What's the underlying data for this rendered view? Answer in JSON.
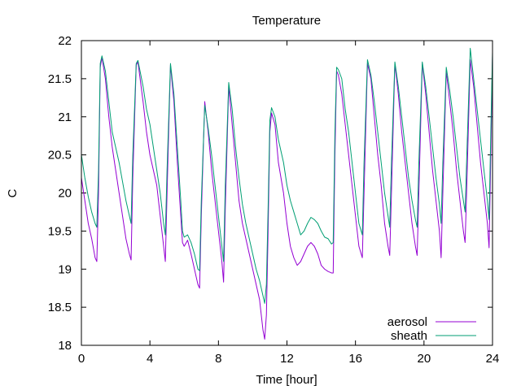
{
  "chart_data": {
    "type": "line",
    "title": "Temperature",
    "xlabel": "Time [hour]",
    "ylabel": "C",
    "xlim": [
      0,
      24
    ],
    "ylim": [
      18,
      22
    ],
    "xticks": [
      0,
      4,
      8,
      12,
      16,
      20,
      24
    ],
    "yticks": [
      18,
      18.5,
      19,
      19.5,
      20,
      20.5,
      21,
      21.5,
      22
    ],
    "grid": false,
    "legend_position": "bottom-right",
    "series": [
      {
        "name": "aerosol",
        "color": "#9400d3",
        "points": [
          [
            0,
            20.2
          ],
          [
            0.2,
            19.9
          ],
          [
            0.4,
            19.6
          ],
          [
            0.6,
            19.4
          ],
          [
            0.8,
            19.15
          ],
          [
            0.9,
            19.1
          ],
          [
            1.0,
            20.0
          ],
          [
            1.1,
            21.65
          ],
          [
            1.2,
            21.78
          ],
          [
            1.4,
            21.5
          ],
          [
            1.6,
            21.0
          ],
          [
            1.8,
            20.6
          ],
          [
            2.0,
            20.3
          ],
          [
            2.2,
            20.0
          ],
          [
            2.4,
            19.7
          ],
          [
            2.6,
            19.4
          ],
          [
            2.8,
            19.2
          ],
          [
            2.9,
            19.12
          ],
          [
            3.0,
            20.2
          ],
          [
            3.2,
            21.68
          ],
          [
            3.3,
            21.72
          ],
          [
            3.6,
            21.2
          ],
          [
            3.8,
            20.8
          ],
          [
            4.0,
            20.5
          ],
          [
            4.2,
            20.3
          ],
          [
            4.4,
            20.1
          ],
          [
            4.6,
            19.7
          ],
          [
            4.8,
            19.3
          ],
          [
            4.9,
            19.1
          ],
          [
            5.0,
            20.0
          ],
          [
            5.2,
            21.68
          ],
          [
            5.4,
            21.2
          ],
          [
            5.6,
            20.4
          ],
          [
            5.8,
            19.7
          ],
          [
            5.9,
            19.35
          ],
          [
            6.0,
            19.3
          ],
          [
            6.2,
            19.38
          ],
          [
            6.4,
            19.2
          ],
          [
            6.6,
            19.0
          ],
          [
            6.8,
            18.8
          ],
          [
            6.9,
            18.75
          ],
          [
            7.0,
            19.7
          ],
          [
            7.2,
            21.2
          ],
          [
            7.4,
            20.8
          ],
          [
            7.6,
            20.3
          ],
          [
            7.8,
            19.9
          ],
          [
            8.0,
            19.5
          ],
          [
            8.2,
            19.1
          ],
          [
            8.3,
            18.83
          ],
          [
            8.4,
            19.8
          ],
          [
            8.6,
            21.4
          ],
          [
            8.8,
            20.9
          ],
          [
            9.0,
            20.4
          ],
          [
            9.2,
            19.9
          ],
          [
            9.4,
            19.6
          ],
          [
            9.6,
            19.4
          ],
          [
            9.8,
            19.2
          ],
          [
            10.0,
            19.0
          ],
          [
            10.2,
            18.8
          ],
          [
            10.4,
            18.6
          ],
          [
            10.6,
            18.2
          ],
          [
            10.7,
            18.08
          ],
          [
            10.8,
            18.4
          ],
          [
            10.9,
            19.5
          ],
          [
            11.0,
            20.8
          ],
          [
            11.1,
            21.05
          ],
          [
            11.3,
            20.9
          ],
          [
            11.5,
            20.4
          ],
          [
            11.8,
            20.0
          ],
          [
            12.0,
            19.6
          ],
          [
            12.2,
            19.3
          ],
          [
            12.4,
            19.15
          ],
          [
            12.6,
            19.05
          ],
          [
            12.8,
            19.1
          ],
          [
            13.0,
            19.2
          ],
          [
            13.2,
            19.3
          ],
          [
            13.4,
            19.35
          ],
          [
            13.6,
            19.3
          ],
          [
            13.8,
            19.2
          ],
          [
            14.0,
            19.05
          ],
          [
            14.2,
            19.0
          ],
          [
            14.4,
            18.97
          ],
          [
            14.6,
            18.95
          ],
          [
            14.7,
            18.95
          ],
          [
            14.8,
            20.5
          ],
          [
            14.9,
            21.6
          ],
          [
            15.0,
            21.55
          ],
          [
            15.2,
            21.3
          ],
          [
            15.4,
            20.9
          ],
          [
            15.6,
            20.5
          ],
          [
            15.8,
            20.1
          ],
          [
            16.0,
            19.7
          ],
          [
            16.2,
            19.3
          ],
          [
            16.4,
            19.15
          ],
          [
            16.5,
            20.0
          ],
          [
            16.7,
            21.7
          ],
          [
            16.9,
            21.5
          ],
          [
            17.1,
            21.0
          ],
          [
            17.3,
            20.5
          ],
          [
            17.5,
            20.1
          ],
          [
            17.7,
            19.6
          ],
          [
            17.9,
            19.3
          ],
          [
            18.0,
            19.18
          ],
          [
            18.1,
            20.0
          ],
          [
            18.3,
            21.7
          ],
          [
            18.5,
            21.3
          ],
          [
            18.7,
            20.8
          ],
          [
            18.9,
            20.4
          ],
          [
            19.1,
            20.0
          ],
          [
            19.3,
            19.6
          ],
          [
            19.5,
            19.3
          ],
          [
            19.6,
            19.18
          ],
          [
            19.7,
            20.0
          ],
          [
            19.9,
            21.7
          ],
          [
            20.1,
            21.3
          ],
          [
            20.3,
            20.8
          ],
          [
            20.5,
            20.3
          ],
          [
            20.7,
            19.9
          ],
          [
            20.9,
            19.5
          ],
          [
            21.0,
            19.15
          ],
          [
            21.1,
            20.0
          ],
          [
            21.3,
            21.6
          ],
          [
            21.5,
            21.2
          ],
          [
            21.7,
            20.8
          ],
          [
            21.9,
            20.3
          ],
          [
            22.1,
            19.9
          ],
          [
            22.3,
            19.5
          ],
          [
            22.4,
            19.35
          ],
          [
            22.5,
            20.1
          ],
          [
            22.7,
            21.75
          ],
          [
            22.9,
            21.4
          ],
          [
            23.1,
            20.9
          ],
          [
            23.3,
            20.4
          ],
          [
            23.5,
            20.0
          ],
          [
            23.7,
            19.6
          ],
          [
            23.8,
            19.28
          ],
          [
            23.9,
            20.5
          ],
          [
            24.0,
            21.8
          ]
        ]
      },
      {
        "name": "sheath",
        "color": "#009e73",
        "points": [
          [
            0,
            20.5
          ],
          [
            0.2,
            20.2
          ],
          [
            0.4,
            19.95
          ],
          [
            0.6,
            19.75
          ],
          [
            0.8,
            19.6
          ],
          [
            0.9,
            19.55
          ],
          [
            1.0,
            20.3
          ],
          [
            1.1,
            21.7
          ],
          [
            1.2,
            21.8
          ],
          [
            1.4,
            21.6
          ],
          [
            1.6,
            21.2
          ],
          [
            1.8,
            20.8
          ],
          [
            2.0,
            20.6
          ],
          [
            2.2,
            20.4
          ],
          [
            2.4,
            20.15
          ],
          [
            2.6,
            19.9
          ],
          [
            2.8,
            19.7
          ],
          [
            2.9,
            19.6
          ],
          [
            3.0,
            20.5
          ],
          [
            3.2,
            21.7
          ],
          [
            3.3,
            21.74
          ],
          [
            3.6,
            21.4
          ],
          [
            3.8,
            21.1
          ],
          [
            4.0,
            20.9
          ],
          [
            4.2,
            20.6
          ],
          [
            4.4,
            20.3
          ],
          [
            4.6,
            20.0
          ],
          [
            4.8,
            19.6
          ],
          [
            4.9,
            19.45
          ],
          [
            5.0,
            20.3
          ],
          [
            5.2,
            21.7
          ],
          [
            5.4,
            21.3
          ],
          [
            5.6,
            20.6
          ],
          [
            5.8,
            19.9
          ],
          [
            5.9,
            19.5
          ],
          [
            6.0,
            19.42
          ],
          [
            6.2,
            19.45
          ],
          [
            6.4,
            19.35
          ],
          [
            6.6,
            19.2
          ],
          [
            6.8,
            19.0
          ],
          [
            6.9,
            18.98
          ],
          [
            7.0,
            19.9
          ],
          [
            7.2,
            21.15
          ],
          [
            7.4,
            20.85
          ],
          [
            7.6,
            20.5
          ],
          [
            7.8,
            20.1
          ],
          [
            8.0,
            19.7
          ],
          [
            8.2,
            19.3
          ],
          [
            8.3,
            19.1
          ],
          [
            8.4,
            20.1
          ],
          [
            8.6,
            21.45
          ],
          [
            8.8,
            21.1
          ],
          [
            9.0,
            20.6
          ],
          [
            9.2,
            20.2
          ],
          [
            9.4,
            19.85
          ],
          [
            9.6,
            19.6
          ],
          [
            9.8,
            19.4
          ],
          [
            10.0,
            19.2
          ],
          [
            10.2,
            19.0
          ],
          [
            10.4,
            18.85
          ],
          [
            10.6,
            18.65
          ],
          [
            10.7,
            18.55
          ],
          [
            10.8,
            18.8
          ],
          [
            10.9,
            19.8
          ],
          [
            11.0,
            20.95
          ],
          [
            11.1,
            21.12
          ],
          [
            11.3,
            21.0
          ],
          [
            11.5,
            20.7
          ],
          [
            11.8,
            20.4
          ],
          [
            12.0,
            20.1
          ],
          [
            12.2,
            19.9
          ],
          [
            12.4,
            19.75
          ],
          [
            12.6,
            19.6
          ],
          [
            12.8,
            19.45
          ],
          [
            13.0,
            19.5
          ],
          [
            13.2,
            19.6
          ],
          [
            13.4,
            19.68
          ],
          [
            13.6,
            19.65
          ],
          [
            13.8,
            19.6
          ],
          [
            14.0,
            19.5
          ],
          [
            14.2,
            19.42
          ],
          [
            14.4,
            19.4
          ],
          [
            14.6,
            19.33
          ],
          [
            14.7,
            19.35
          ],
          [
            14.8,
            20.8
          ],
          [
            14.9,
            21.65
          ],
          [
            15.0,
            21.62
          ],
          [
            15.2,
            21.5
          ],
          [
            15.4,
            21.1
          ],
          [
            15.6,
            20.8
          ],
          [
            15.8,
            20.4
          ],
          [
            16.0,
            20.0
          ],
          [
            16.2,
            19.6
          ],
          [
            16.4,
            19.45
          ],
          [
            16.5,
            20.4
          ],
          [
            16.7,
            21.75
          ],
          [
            16.9,
            21.55
          ],
          [
            17.1,
            21.2
          ],
          [
            17.3,
            20.8
          ],
          [
            17.5,
            20.4
          ],
          [
            17.7,
            20.0
          ],
          [
            17.9,
            19.7
          ],
          [
            18.0,
            19.55
          ],
          [
            18.1,
            20.4
          ],
          [
            18.3,
            21.72
          ],
          [
            18.5,
            21.4
          ],
          [
            18.7,
            21.0
          ],
          [
            18.9,
            20.6
          ],
          [
            19.1,
            20.2
          ],
          [
            19.3,
            19.9
          ],
          [
            19.5,
            19.65
          ],
          [
            19.6,
            19.55
          ],
          [
            19.7,
            20.4
          ],
          [
            19.9,
            21.72
          ],
          [
            20.1,
            21.4
          ],
          [
            20.3,
            21.0
          ],
          [
            20.5,
            20.6
          ],
          [
            20.7,
            20.2
          ],
          [
            20.9,
            19.85
          ],
          [
            21.0,
            19.6
          ],
          [
            21.1,
            20.4
          ],
          [
            21.3,
            21.65
          ],
          [
            21.5,
            21.35
          ],
          [
            21.7,
            21.0
          ],
          [
            21.9,
            20.6
          ],
          [
            22.1,
            20.2
          ],
          [
            22.3,
            19.9
          ],
          [
            22.4,
            19.75
          ],
          [
            22.5,
            20.5
          ],
          [
            22.7,
            21.9
          ],
          [
            22.9,
            21.5
          ],
          [
            23.1,
            21.1
          ],
          [
            23.3,
            20.7
          ],
          [
            23.5,
            20.3
          ],
          [
            23.7,
            19.9
          ],
          [
            23.8,
            19.65
          ],
          [
            23.9,
            20.8
          ],
          [
            24.0,
            21.85
          ]
        ]
      }
    ]
  }
}
